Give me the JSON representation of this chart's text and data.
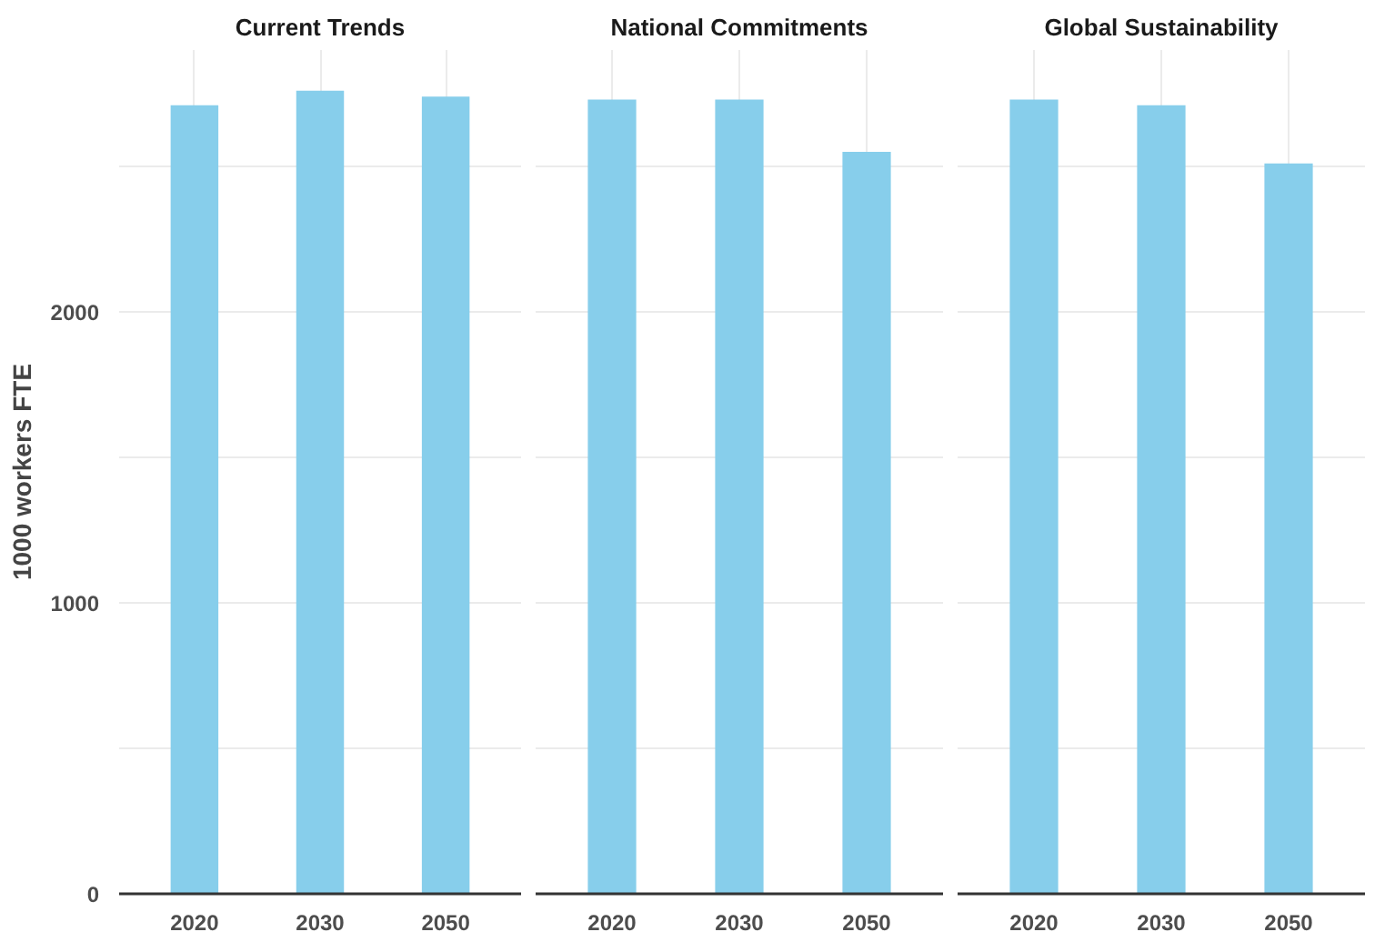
{
  "chart_data": [
    {
      "type": "bar",
      "title": "Current Trends",
      "ylabel": "1000 workers FTE",
      "categories": [
        "2020",
        "2030",
        "2050"
      ],
      "values": [
        2710,
        2760,
        2740
      ],
      "color": "#87ceeb",
      "ylim": [
        0,
        2900
      ],
      "yticks": [
        0,
        {
          "value": 500,
          "label": null
        },
        1000,
        {
          "value": 1500,
          "label": null
        },
        2000,
        {
          "value": 2500,
          "label": null
        }
      ],
      "grid": true
    },
    {
      "type": "bar",
      "title": "National Commitments",
      "categories": [
        "2020",
        "2030",
        "2050"
      ],
      "values": [
        2730,
        2730,
        2550
      ],
      "color": "#87ceeb",
      "ylim": [
        0,
        2900
      ],
      "yticks": [
        0,
        {
          "value": 500,
          "label": null
        },
        1000,
        {
          "value": 1500,
          "label": null
        },
        2000,
        {
          "value": 2500,
          "label": null
        }
      ],
      "grid": true,
      "tick_labels": "x"
    },
    {
      "type": "bar",
      "title": "Global Sustainability",
      "categories": [
        "2020",
        "2030",
        "2050"
      ],
      "values": [
        2730,
        2710,
        2510
      ],
      "color": "#87ceeb",
      "ylim": [
        0,
        2900
      ],
      "yticks": [
        0,
        {
          "value": 500,
          "label": null
        },
        1000,
        {
          "value": 1500,
          "label": null
        },
        2000,
        {
          "value": 2500,
          "label": null
        }
      ],
      "grid": true,
      "tick_labels": "x"
    }
  ]
}
